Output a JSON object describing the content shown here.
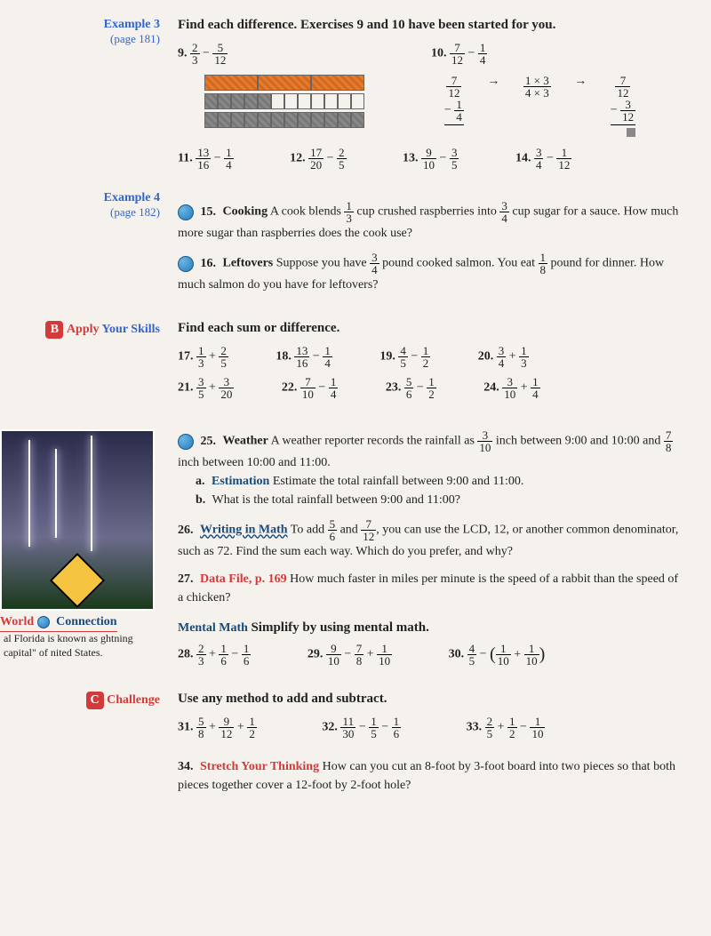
{
  "ex3": {
    "label": "Example 3",
    "page": "(page 181)",
    "instruction": "Find each difference. Exercises 9 and 10 have been started for you."
  },
  "p9": {
    "num": "9.",
    "a_n": "2",
    "a_d": "3",
    "op": "−",
    "b_n": "5",
    "b_d": "12"
  },
  "p10": {
    "num": "10.",
    "a_n": "7",
    "a_d": "12",
    "op": "−",
    "b_n": "1",
    "b_d": "4",
    "w1_top_n": "7",
    "w1_top_d": "12",
    "w1_bot_n": "1",
    "w1_bot_d": "4",
    "arrow": "→",
    "conv_top": "1 × 3",
    "conv_bot": "4 × 3",
    "w2_top_n": "7",
    "w2_top_d": "12",
    "w2_bot_n": "3",
    "w2_bot_d": "12"
  },
  "bars": {
    "row1_orange": 3,
    "row1_total": 3,
    "row2_gray": 5,
    "row2_total": 12,
    "row3_gray": 12
  },
  "p11": {
    "num": "11.",
    "a_n": "13",
    "a_d": "16",
    "op": "−",
    "b_n": "1",
    "b_d": "4"
  },
  "p12": {
    "num": "12.",
    "a_n": "17",
    "a_d": "20",
    "op": "−",
    "b_n": "2",
    "b_d": "5"
  },
  "p13": {
    "num": "13.",
    "a_n": "9",
    "a_d": "10",
    "op": "−",
    "b_n": "3",
    "b_d": "5"
  },
  "p14": {
    "num": "14.",
    "a_n": "3",
    "a_d": "4",
    "op": "−",
    "b_n": "1",
    "b_d": "12"
  },
  "ex4": {
    "label": "Example 4",
    "page": "(page 182)"
  },
  "p15": {
    "num": "15.",
    "title": "Cooking",
    "t1": "A cook blends ",
    "f1n": "1",
    "f1d": "3",
    "t2": " cup crushed raspberries into ",
    "f2n": "3",
    "f2d": "4",
    "t3": " cup sugar for a sauce. How much more sugar than raspberries does the cook use?"
  },
  "p16": {
    "num": "16.",
    "title": "Leftovers",
    "t1": "Suppose you have ",
    "f1n": "3",
    "f1d": "4",
    "t2": " pound cooked salmon. You eat ",
    "f2n": "1",
    "f2d": "8",
    "t3": " pound for dinner. How much salmon do you have for leftovers?"
  },
  "sectionB": {
    "badge": "B",
    "t1": "Apply ",
    "t2": "Your Skills",
    "instr": "Find each sum or difference."
  },
  "p17": {
    "num": "17.",
    "a_n": "1",
    "a_d": "3",
    "op": "+",
    "b_n": "2",
    "b_d": "5"
  },
  "p18": {
    "num": "18.",
    "a_n": "13",
    "a_d": "16",
    "op": "−",
    "b_n": "1",
    "b_d": "4"
  },
  "p19": {
    "num": "19.",
    "a_n": "4",
    "a_d": "5",
    "op": "−",
    "b_n": "1",
    "b_d": "2"
  },
  "p20": {
    "num": "20.",
    "a_n": "3",
    "a_d": "4",
    "op": "+",
    "b_n": "1",
    "b_d": "3"
  },
  "p21": {
    "num": "21.",
    "a_n": "3",
    "a_d": "5",
    "op": "+",
    "b_n": "3",
    "b_d": "20"
  },
  "p22": {
    "num": "22.",
    "a_n": "7",
    "a_d": "10",
    "op": "−",
    "b_n": "1",
    "b_d": "4"
  },
  "p23": {
    "num": "23.",
    "a_n": "5",
    "a_d": "6",
    "op": "−",
    "b_n": "1",
    "b_d": "2"
  },
  "p24": {
    "num": "24.",
    "a_n": "3",
    "a_d": "10",
    "op": "+",
    "b_n": "1",
    "b_d": "4"
  },
  "p25": {
    "num": "25.",
    "title": "Weather",
    "t1": "A weather reporter records the rainfall as ",
    "f1n": "3",
    "f1d": "10",
    "t2": " inch between 9:00 and 10:00 and ",
    "f2n": "7",
    "f2d": "8",
    "t3": " inch between 10:00 and 11:00.",
    "a_label": "a.",
    "a_term": "Estimation",
    "a_text": "Estimate the total rainfall between 9:00 and 11:00.",
    "b_label": "b.",
    "b_text": "What is the total rainfall between 9:00 and 11:00?"
  },
  "p26": {
    "num": "26.",
    "title": "Writing in Math",
    "t1": "To add ",
    "f1n": "5",
    "f1d": "6",
    "t2": " and ",
    "f2n": "7",
    "f2d": "12",
    "t3": ", you can use the LCD, 12, or another common denominator, such as 72. Find the sum each way. Which do you prefer, and why?"
  },
  "p27": {
    "num": "27.",
    "title": "Data File, p. 169",
    "text": "How much faster in miles per minute is the speed of a rabbit than the speed of a chicken?"
  },
  "sidebar": {
    "heading_w": "World",
    "heading_c": "Connection",
    "caption": "al Florida is known as ghtning capital\" of nited States."
  },
  "mental": {
    "heading": "Mental Math",
    "instr": "Simplify by using mental math."
  },
  "p28": {
    "num": "28.",
    "a_n": "2",
    "a_d": "3",
    "op1": "+",
    "b_n": "1",
    "b_d": "6",
    "op2": "−",
    "c_n": "1",
    "c_d": "6"
  },
  "p29": {
    "num": "29.",
    "a_n": "9",
    "a_d": "10",
    "op1": "−",
    "b_n": "7",
    "b_d": "8",
    "op2": "+",
    "c_n": "1",
    "c_d": "10"
  },
  "p30": {
    "num": "30.",
    "a_n": "4",
    "a_d": "5",
    "op1": "−",
    "b_n": "1",
    "b_d": "10",
    "op2": "+",
    "c_n": "1",
    "c_d": "10"
  },
  "sectionC": {
    "badge": "C",
    "label": "Challenge",
    "instr": "Use any method to add and subtract."
  },
  "p31": {
    "num": "31.",
    "a_n": "5",
    "a_d": "8",
    "op1": "+",
    "b_n": "9",
    "b_d": "12",
    "op2": "+",
    "c_n": "1",
    "c_d": "2"
  },
  "p32": {
    "num": "32.",
    "a_n": "11",
    "a_d": "30",
    "op1": "−",
    "b_n": "1",
    "b_d": "5",
    "op2": "−",
    "c_n": "1",
    "c_d": "6"
  },
  "p33": {
    "num": "33.",
    "a_n": "2",
    "a_d": "5",
    "op1": "+",
    "b_n": "1",
    "b_d": "2",
    "op2": "−",
    "c_n": "1",
    "c_d": "10"
  },
  "p34": {
    "num": "34.",
    "title": "Stretch Your Thinking",
    "text": "How can you cut an 8-foot by 3-foot board into two pieces so that both pieces together cover a 12-foot by 2-foot hole?"
  }
}
